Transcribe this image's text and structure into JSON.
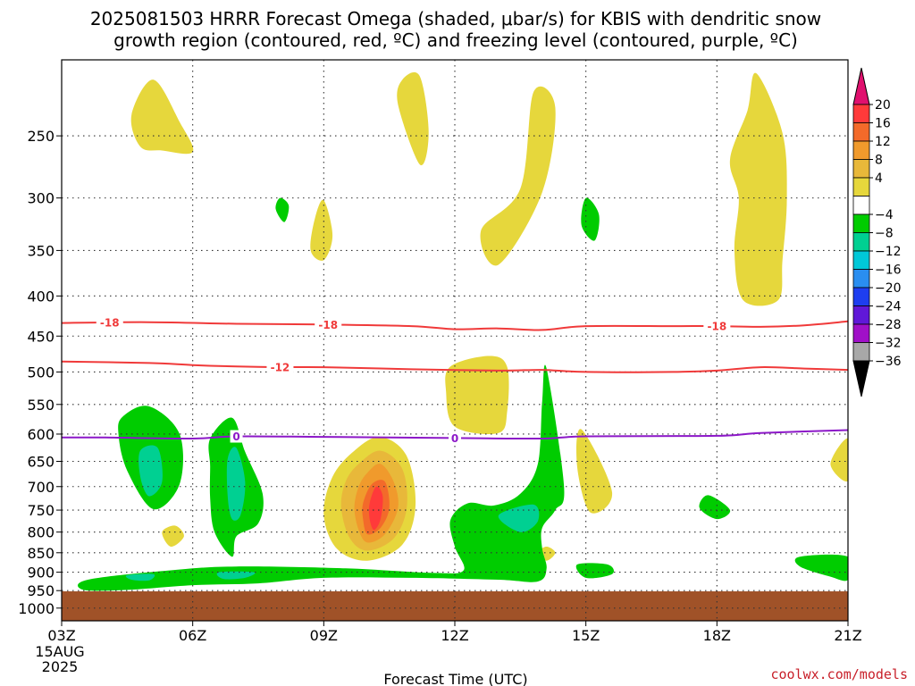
{
  "title": {
    "line1": "2025081503 HRRR Forecast Omega (shaded, μbar/s) for KBIS with dendritic snow",
    "line2": "growth region (contoured, red, ºC) and freezing level (contoured, purple, ºC)"
  },
  "credit": "coolwx.com/models",
  "chart_data": {
    "type": "heatmap",
    "title": "2025081503 HRRR Forecast Omega (shaded, μbar/s) for KBIS with dendritic snow growth region (contoured, red, ºC) and freezing level (contoured, purple, ºC)",
    "xlabel": "Forecast Time (UTC)",
    "ylabel": "",
    "x_ticks": [
      "03Z",
      "06Z",
      "09Z",
      "12Z",
      "15Z",
      "18Z",
      "21Z"
    ],
    "x_tick_hours": [
      3,
      6,
      9,
      12,
      15,
      18,
      21
    ],
    "x_first_date": [
      "15AUG",
      "2025"
    ],
    "xlim_hours": [
      3,
      21
    ],
    "y_ticks": [
      250,
      300,
      350,
      400,
      450,
      500,
      550,
      600,
      650,
      700,
      750,
      800,
      850,
      900,
      950,
      1000
    ],
    "ylim_hPa": [
      1038,
      200
    ],
    "y_scale": "log-pressure",
    "grid": true,
    "colorbar": {
      "levels": [
        "20",
        "16",
        "12",
        "8",
        "4",
        "−4",
        "−8",
        "−12",
        "−16",
        "−20",
        "−24",
        "−28",
        "−32",
        "−36"
      ],
      "colors": [
        "#ff3a3a",
        "#f36a2a",
        "#f09a2c",
        "#e8b83a",
        "#e6d73c",
        "#ffffff",
        "#00cc00",
        "#00d092",
        "#00c8d8",
        "#2a8ef0",
        "#1e3ef0",
        "#6018d8",
        "#a010c8",
        "#a8a8a8"
      ],
      "top_arrow_color": "#e0106e",
      "bottom_arrow_color": "#000000"
    },
    "omega_regions": [
      {
        "level": 4,
        "points": [
          [
            4.6,
            235
          ],
          [
            5.1,
            212
          ],
          [
            5.7,
            240
          ],
          [
            6.0,
            262
          ],
          [
            5.3,
            261
          ],
          [
            4.8,
            258
          ]
        ]
      },
      {
        "level": 4,
        "points": [
          [
            11.2,
            210
          ],
          [
            11.4,
            248
          ],
          [
            11.2,
            272
          ],
          [
            10.7,
            228
          ],
          [
            10.8,
            212
          ]
        ]
      },
      {
        "level": 4,
        "points": [
          [
            9.0,
            302
          ],
          [
            9.2,
            335
          ],
          [
            9.0,
            360
          ],
          [
            8.7,
            350
          ],
          [
            8.8,
            318
          ]
        ]
      },
      {
        "level": 4,
        "points": [
          [
            13.8,
            220
          ],
          [
            14.3,
            230
          ],
          [
            14.0,
            295
          ],
          [
            13.0,
            365
          ],
          [
            12.6,
            330
          ],
          [
            13.5,
            292
          ]
        ]
      },
      {
        "level": 4,
        "points": [
          [
            18.9,
            208
          ],
          [
            19.5,
            248
          ],
          [
            19.6,
            300
          ],
          [
            19.5,
            360
          ],
          [
            19.4,
            405
          ],
          [
            18.6,
            405
          ],
          [
            18.4,
            350
          ],
          [
            18.5,
            300
          ],
          [
            18.3,
            268
          ],
          [
            18.7,
            232
          ]
        ]
      },
      {
        "level": 4,
        "points": [
          [
            12.8,
            477
          ],
          [
            13.2,
            493
          ],
          [
            13.2,
            560
          ],
          [
            13.0,
            598
          ],
          [
            12.0,
            587
          ],
          [
            11.8,
            530
          ],
          [
            11.9,
            492
          ]
        ]
      },
      {
        "level": 4,
        "points": [
          [
            14.9,
            592
          ],
          [
            15.6,
            712
          ],
          [
            15.1,
            755
          ],
          [
            14.8,
            660
          ]
        ]
      },
      {
        "level": 4,
        "points": [
          [
            5.3,
            800
          ],
          [
            5.6,
            785
          ],
          [
            5.8,
            810
          ],
          [
            5.5,
            835
          ]
        ]
      },
      {
        "level": 4,
        "points": [
          [
            14.1,
            835
          ],
          [
            14.3,
            850
          ],
          [
            14.1,
            870
          ],
          [
            13.9,
            850
          ]
        ]
      },
      {
        "level": 4,
        "points": [
          [
            21.0,
            608
          ],
          [
            21.0,
            688
          ],
          [
            20.6,
            655
          ]
        ]
      },
      {
        "level": 4,
        "points": [
          [
            9.7,
            630
          ],
          [
            10.3,
            605
          ],
          [
            10.9,
            640
          ],
          [
            11.1,
            740
          ],
          [
            10.8,
            830
          ],
          [
            10.0,
            870
          ],
          [
            9.3,
            840
          ],
          [
            9.0,
            760
          ],
          [
            9.2,
            680
          ]
        ]
      },
      {
        "level": 8,
        "points": [
          [
            9.8,
            655
          ],
          [
            10.3,
            630
          ],
          [
            10.8,
            665
          ],
          [
            10.9,
            745
          ],
          [
            10.6,
            815
          ],
          [
            10.0,
            845
          ],
          [
            9.6,
            815
          ],
          [
            9.4,
            745
          ],
          [
            9.5,
            690
          ]
        ]
      },
      {
        "level": 12,
        "points": [
          [
            10.0,
            672
          ],
          [
            10.3,
            655
          ],
          [
            10.6,
            690
          ],
          [
            10.7,
            745
          ],
          [
            10.4,
            805
          ],
          [
            10.0,
            825
          ],
          [
            9.8,
            795
          ],
          [
            9.7,
            745
          ],
          [
            9.8,
            700
          ]
        ]
      },
      {
        "level": 16,
        "points": [
          [
            10.1,
            695
          ],
          [
            10.4,
            690
          ],
          [
            10.5,
            745
          ],
          [
            10.3,
            790
          ],
          [
            10.0,
            805
          ],
          [
            9.9,
            770
          ],
          [
            9.9,
            735
          ]
        ]
      },
      {
        "level": 20,
        "points": [
          [
            10.2,
            700
          ],
          [
            10.35,
            720
          ],
          [
            10.3,
            770
          ],
          [
            10.15,
            795
          ],
          [
            10.05,
            770
          ],
          [
            10.05,
            735
          ]
        ]
      },
      {
        "level": -4,
        "points": [
          [
            4.4,
            570
          ],
          [
            5.0,
            553
          ],
          [
            5.7,
            600
          ],
          [
            5.7,
            695
          ],
          [
            5.1,
            748
          ],
          [
            4.5,
            668
          ],
          [
            4.3,
            600
          ]
        ]
      },
      {
        "level": -4,
        "points": [
          [
            6.4,
            608
          ],
          [
            6.9,
            572
          ],
          [
            7.2,
            632
          ],
          [
            7.6,
            715
          ],
          [
            7.5,
            780
          ],
          [
            7.0,
            810
          ],
          [
            6.9,
            860
          ],
          [
            6.5,
            800
          ],
          [
            6.4,
            725
          ],
          [
            6.4,
            660
          ]
        ]
      },
      {
        "level": -4,
        "points": [
          [
            3.6,
            920
          ],
          [
            5.5,
            895
          ],
          [
            7.0,
            885
          ],
          [
            9.5,
            890
          ],
          [
            11.5,
            902
          ],
          [
            12.2,
            895
          ],
          [
            12.0,
            835
          ],
          [
            11.9,
            772
          ],
          [
            12.3,
            735
          ],
          [
            12.9,
            740
          ],
          [
            13.5,
            715
          ],
          [
            13.9,
            655
          ],
          [
            14.0,
            545
          ],
          [
            14.1,
            495
          ],
          [
            14.5,
            700
          ],
          [
            14.3,
            750
          ],
          [
            14.0,
            790
          ],
          [
            14.0,
            840
          ],
          [
            14.1,
            890
          ],
          [
            13.9,
            925
          ],
          [
            13.0,
            920
          ],
          [
            11.0,
            915
          ],
          [
            9.0,
            915
          ],
          [
            7.5,
            930
          ],
          [
            6.0,
            935
          ],
          [
            4.5,
            948
          ],
          [
            3.5,
            948
          ]
        ]
      },
      {
        "level": -4,
        "points": [
          [
            8.0,
            300
          ],
          [
            8.2,
            307
          ],
          [
            8.1,
            322
          ],
          [
            7.9,
            310
          ]
        ]
      },
      {
        "level": -4,
        "points": [
          [
            15.0,
            300
          ],
          [
            15.3,
            315
          ],
          [
            15.2,
            340
          ],
          [
            14.9,
            325
          ]
        ]
      },
      {
        "level": -4,
        "points": [
          [
            17.8,
            718
          ],
          [
            18.3,
            750
          ],
          [
            18.0,
            770
          ],
          [
            17.6,
            745
          ]
        ]
      },
      {
        "level": -4,
        "points": [
          [
            14.8,
            880
          ],
          [
            15.5,
            880
          ],
          [
            15.6,
            905
          ],
          [
            15.0,
            915
          ]
        ]
      },
      {
        "level": -4,
        "points": [
          [
            19.9,
            860
          ],
          [
            21.0,
            860
          ],
          [
            21.0,
            920
          ],
          [
            20.6,
            912
          ],
          [
            19.9,
            885
          ]
        ]
      },
      {
        "level": -8,
        "points": [
          [
            4.8,
            630
          ],
          [
            5.2,
            625
          ],
          [
            5.3,
            690
          ],
          [
            5.0,
            720
          ],
          [
            4.8,
            680
          ]
        ]
      },
      {
        "level": -8,
        "points": [
          [
            6.8,
            645
          ],
          [
            7.0,
            625
          ],
          [
            7.2,
            690
          ],
          [
            7.1,
            760
          ],
          [
            6.9,
            770
          ],
          [
            6.8,
            720
          ]
        ]
      },
      {
        "level": -8,
        "points": [
          [
            4.5,
            908
          ],
          [
            5.1,
            905
          ],
          [
            5.0,
            922
          ],
          [
            4.6,
            920
          ]
        ]
      },
      {
        "level": -8,
        "points": [
          [
            6.6,
            900
          ],
          [
            7.4,
            900
          ],
          [
            7.2,
            915
          ],
          [
            6.7,
            918
          ]
        ]
      },
      {
        "level": -8,
        "points": [
          [
            13.0,
            762
          ],
          [
            13.8,
            738
          ],
          [
            13.9,
            775
          ],
          [
            13.5,
            800
          ]
        ]
      }
    ],
    "dgz_contours": [
      {
        "label": "-18",
        "color": "#f03a3a",
        "points": [
          [
            3.0,
            433
          ],
          [
            5.0,
            432
          ],
          [
            7.0,
            434
          ],
          [
            9.0,
            435
          ],
          [
            11.0,
            437
          ],
          [
            12.0,
            441
          ],
          [
            13.0,
            440
          ],
          [
            14.0,
            442
          ],
          [
            15.0,
            437
          ],
          [
            17.0,
            437
          ],
          [
            18.0,
            437
          ],
          [
            19.0,
            438
          ],
          [
            20.0,
            436
          ],
          [
            21.0,
            431
          ]
        ],
        "label_hours": [
          4.1,
          9.1,
          18.0
        ]
      },
      {
        "label": "-12",
        "color": "#f03a3a",
        "points": [
          [
            3.0,
            485
          ],
          [
            5.0,
            487
          ],
          [
            6.0,
            490
          ],
          [
            7.0,
            492
          ],
          [
            8.0,
            493
          ],
          [
            9.0,
            493
          ],
          [
            11.0,
            496
          ],
          [
            13.0,
            498
          ],
          [
            14.0,
            497
          ],
          [
            15.0,
            500
          ],
          [
            17.0,
            500
          ],
          [
            18.0,
            498
          ],
          [
            19.0,
            493
          ],
          [
            20.0,
            495
          ],
          [
            21.0,
            497
          ]
        ],
        "label_hours": [
          8.0
        ]
      }
    ],
    "freezing_level": {
      "label": "0",
      "color": "#8c18c8",
      "points": [
        [
          3.0,
          606
        ],
        [
          4.0,
          606
        ],
        [
          6.0,
          608
        ],
        [
          7.0,
          604
        ],
        [
          9.0,
          605
        ],
        [
          12.0,
          607
        ],
        [
          14.0,
          608
        ],
        [
          15.0,
          604
        ],
        [
          18.0,
          603
        ],
        [
          19.0,
          598
        ],
        [
          21.0,
          593
        ]
      ],
      "label_hours": [
        7.0,
        12.0
      ]
    },
    "terrain": {
      "top_hPa": 952,
      "color": "#a05228"
    }
  }
}
